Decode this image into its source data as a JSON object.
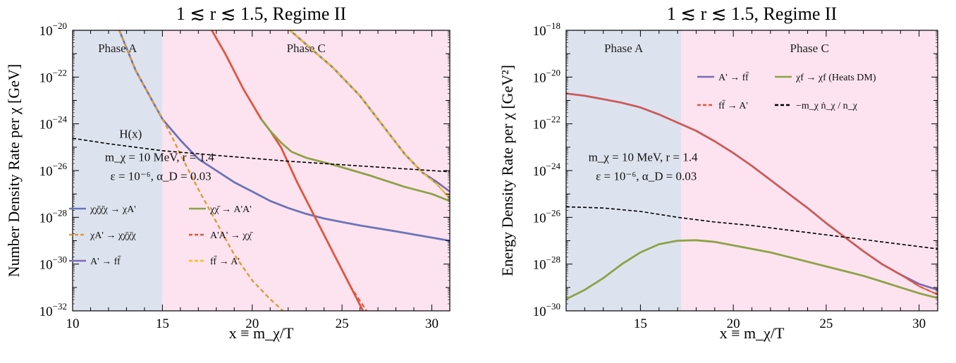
{
  "colors": {
    "phaseA": "#dde3ee",
    "phaseC": "#fce3ef",
    "blue": "#6b74b7",
    "green": "#8da246",
    "orange": "#e09a35",
    "red": "#e2553b",
    "purple": "#7e6bb4",
    "yellow": "#f5be22",
    "black": "#000000"
  },
  "chart_data": [
    {
      "type": "line",
      "title": "1 ≲ r ≲ 1.5, Regime II",
      "xlabel": "x ≡ m_χ/T",
      "ylabel": "Number Density Rate per χ [GeV]",
      "xlim": [
        10,
        31
      ],
      "ylim_exp": [
        -32,
        -20
      ],
      "log_y": true,
      "x_ticks": [
        10,
        15,
        20,
        25,
        30
      ],
      "y_tick_exps": [
        -20,
        -22,
        -24,
        -26,
        -28,
        -30,
        -32
      ],
      "regions": [
        {
          "label": "Phase A",
          "x": [
            10,
            15
          ],
          "color": "phaseA"
        },
        {
          "label": "Phase C",
          "x": [
            15,
            31
          ],
          "color": "phaseC"
        }
      ],
      "annotations": [
        {
          "text": "H(x)",
          "x": 12.6,
          "y_exp": -24.6
        },
        {
          "text": "m_χ = 10 MeV, r = 1.4",
          "x": 11.8,
          "y_exp": -25.6
        },
        {
          "text": "ε = 10⁻⁶, α_D = 0.03",
          "x": 12.1,
          "y_exp": -26.4
        }
      ],
      "legend": {
        "placement": "lower-left",
        "entries": [
          {
            "label": "χχ̄χ̄χ → χA'",
            "color": "blue",
            "dash": false
          },
          {
            "label": "χχ̄ → A'A'",
            "color": "green",
            "dash": false
          },
          {
            "label": "χA' → χχ̄χ̄χ",
            "color": "orange",
            "dash": true
          },
          {
            "label": "A'A' → χχ̄",
            "color": "red",
            "dash": true
          },
          {
            "label": "A' → ff̄",
            "color": "purple",
            "dash": false
          },
          {
            "label": "ff̄ → A'",
            "color": "yellow",
            "dash": true
          }
        ]
      },
      "series": [
        {
          "color": "blue",
          "dash": "",
          "width": 2.8,
          "points": [
            [
              12.6,
              -20
            ],
            [
              13.5,
              -21.7
            ],
            [
              14.5,
              -23.1
            ],
            [
              15.0,
              -23.8
            ],
            [
              16.0,
              -24.7
            ],
            [
              17.0,
              -25.5
            ],
            [
              18.0,
              -26.0
            ],
            [
              19.0,
              -26.5
            ],
            [
              20.0,
              -26.9
            ],
            [
              21.0,
              -27.3
            ],
            [
              22.0,
              -27.6
            ],
            [
              23.0,
              -27.85
            ],
            [
              24.0,
              -28.05
            ],
            [
              25.0,
              -28.2
            ],
            [
              26.0,
              -28.35
            ],
            [
              28.0,
              -28.6
            ],
            [
              31.0,
              -29.0
            ]
          ]
        },
        {
          "color": "orange",
          "dash": "6,4",
          "width": 2.4,
          "points": [
            [
              12.6,
              -20
            ],
            [
              13.5,
              -21.7
            ],
            [
              14.5,
              -23.1
            ],
            [
              15.0,
              -23.8
            ],
            [
              15.5,
              -24.5
            ],
            [
              16.0,
              -25.3
            ],
            [
              17.0,
              -26.8
            ],
            [
              18.0,
              -28.2
            ],
            [
              19.0,
              -29.6
            ],
            [
              20.0,
              -30.7
            ],
            [
              21.0,
              -31.5
            ],
            [
              22.0,
              -32.2
            ]
          ]
        },
        {
          "color": "red",
          "dash": "",
          "width": 2.8,
          "points": [
            [
              17.75,
              -20
            ],
            [
              18.5,
              -21.0
            ],
            [
              19.5,
              -22.5
            ],
            [
              20.5,
              -23.8
            ],
            [
              21.0,
              -24.3
            ],
            [
              21.6,
              -25.0
            ],
            [
              22.5,
              -26.5
            ],
            [
              23.5,
              -28.0
            ],
            [
              24.5,
              -29.5
            ],
            [
              25.5,
              -31.0
            ],
            [
              26.5,
              -32.5
            ]
          ]
        },
        {
          "color": "green",
          "dash": "",
          "width": 2.8,
          "points": [
            [
              20.5,
              -23.8
            ],
            [
              21.0,
              -24.3
            ],
            [
              21.6,
              -24.8
            ],
            [
              22.2,
              -25.2
            ],
            [
              23.0,
              -25.45
            ],
            [
              24.5,
              -25.75
            ],
            [
              26.5,
              -26.2
            ],
            [
              28.5,
              -26.7
            ],
            [
              30.0,
              -27.0
            ],
            [
              31.0,
              -27.3
            ]
          ]
        },
        {
          "color": "red",
          "dash": "6,4",
          "width": 2.4,
          "points": [
            [
              21.6,
              -25.0
            ],
            [
              22.5,
              -26.5
            ],
            [
              23.5,
              -28.0
            ],
            [
              24.5,
              -29.5
            ],
            [
              25.5,
              -31.0
            ],
            [
              26.8,
              -32.5
            ]
          ]
        },
        {
          "color": "purple",
          "dash": "",
          "width": 2.8,
          "points": [
            [
              22.1,
              -20
            ],
            [
              23.0,
              -20.6
            ],
            [
              24.5,
              -21.6
            ],
            [
              26.0,
              -22.8
            ],
            [
              27.5,
              -24.3
            ],
            [
              28.5,
              -25.3
            ],
            [
              29.5,
              -26.1
            ],
            [
              30.3,
              -26.5
            ],
            [
              31.0,
              -26.9
            ]
          ]
        },
        {
          "color": "green",
          "dash": "",
          "width": 1.4,
          "points": [
            [
              22.1,
              -20
            ],
            [
              23.0,
              -20.6
            ],
            [
              24.5,
              -21.6
            ],
            [
              26.0,
              -22.8
            ],
            [
              27.5,
              -24.3
            ],
            [
              28.5,
              -25.3
            ],
            [
              29.5,
              -26.1
            ],
            [
              30.3,
              -26.6
            ],
            [
              31.0,
              -27.2
            ]
          ]
        },
        {
          "color": "yellow",
          "dash": "6,4",
          "width": 2.4,
          "points": [
            [
              22.1,
              -20
            ],
            [
              23.0,
              -20.6
            ],
            [
              24.5,
              -21.6
            ],
            [
              26.0,
              -22.8
            ],
            [
              27.5,
              -24.3
            ],
            [
              28.5,
              -25.3
            ],
            [
              29.5,
              -26.1
            ],
            [
              30.3,
              -26.6
            ],
            [
              31.0,
              -27.2
            ]
          ]
        },
        {
          "color": "black",
          "dash": "5,3",
          "width": 1.6,
          "points": [
            [
              10.0,
              -24.62
            ],
            [
              12.0,
              -24.85
            ],
            [
              15.0,
              -25.15
            ],
            [
              18.0,
              -25.35
            ],
            [
              22.0,
              -25.6
            ],
            [
              26.0,
              -25.8
            ],
            [
              31.0,
              -26.05
            ]
          ]
        }
      ]
    },
    {
      "type": "line",
      "title": "1 ≲ r ≲ 1.5, Regime II",
      "xlabel": "x ≡ m_χ/T",
      "ylabel": "Energy Density Rate per χ [GeV²]",
      "xlim": [
        11,
        31
      ],
      "ylim_exp": [
        -30,
        -18
      ],
      "log_y": true,
      "x_ticks": [
        15,
        20,
        25,
        30
      ],
      "y_tick_exps": [
        -18,
        -20,
        -22,
        -24,
        -26,
        -28,
        -30
      ],
      "regions": [
        {
          "label": "Phase A",
          "x": [
            11,
            17.2
          ],
          "color": "phaseA"
        },
        {
          "label": "Phase C",
          "x": [
            17.2,
            31
          ],
          "color": "phaseC"
        }
      ],
      "annotations": [
        {
          "text": "m_χ = 10 MeV, r = 1.4",
          "x": 12.2,
          "y_exp": -23.6
        },
        {
          "text": "ε = 10⁻⁶, α_D = 0.03",
          "x": 12.6,
          "y_exp": -24.4
        }
      ],
      "legend": {
        "placement": "upper-right",
        "entries": [
          {
            "label": "A' → ff̄",
            "color": "purple",
            "dash": false
          },
          {
            "label": "χf → χf (Heats DM)",
            "color": "green",
            "dash": false
          },
          {
            "label": "ff̄ → A'",
            "color": "red",
            "dash": true
          },
          {
            "label": "−m_χ ṅ_χ / n_χ",
            "color": "black",
            "dash": true
          }
        ]
      },
      "series": [
        {
          "color": "purple",
          "dash": "",
          "width": 2.8,
          "points": [
            [
              11.0,
              -20.7
            ],
            [
              12.0,
              -20.8
            ],
            [
              13.0,
              -20.95
            ],
            [
              14.0,
              -21.1
            ],
            [
              15.0,
              -21.3
            ],
            [
              16.0,
              -21.6
            ],
            [
              17.0,
              -21.95
            ],
            [
              18.0,
              -22.3
            ],
            [
              19.0,
              -22.75
            ],
            [
              20.0,
              -23.25
            ],
            [
              21.0,
              -23.8
            ],
            [
              22.0,
              -24.4
            ],
            [
              23.0,
              -25.0
            ],
            [
              24.0,
              -25.6
            ],
            [
              25.0,
              -26.25
            ],
            [
              26.0,
              -26.85
            ],
            [
              27.0,
              -27.45
            ],
            [
              28.0,
              -28.0
            ],
            [
              29.0,
              -28.45
            ],
            [
              30.0,
              -28.85
            ],
            [
              31.0,
              -29.1
            ]
          ]
        },
        {
          "color": "red",
          "dash": "",
          "width": 1.8,
          "points": [
            [
              11.0,
              -20.7
            ],
            [
              12.0,
              -20.8
            ],
            [
              13.0,
              -20.95
            ],
            [
              14.0,
              -21.1
            ],
            [
              15.0,
              -21.3
            ],
            [
              16.0,
              -21.6
            ],
            [
              17.0,
              -21.95
            ],
            [
              18.0,
              -22.3
            ],
            [
              19.0,
              -22.75
            ],
            [
              20.0,
              -23.25
            ],
            [
              21.0,
              -23.8
            ],
            [
              22.0,
              -24.4
            ],
            [
              23.0,
              -25.0
            ],
            [
              24.0,
              -25.6
            ],
            [
              25.0,
              -26.25
            ],
            [
              26.0,
              -26.85
            ],
            [
              27.0,
              -27.45
            ],
            [
              28.0,
              -28.0
            ],
            [
              29.0,
              -28.45
            ],
            [
              30.0,
              -28.95
            ],
            [
              31.0,
              -29.3
            ]
          ]
        },
        {
          "color": "red",
          "dash": "6,4",
          "width": 2.2,
          "points": [
            [
              11.0,
              -20.7
            ],
            [
              12.0,
              -20.8
            ],
            [
              13.0,
              -20.95
            ],
            [
              14.0,
              -21.1
            ],
            [
              15.0,
              -21.3
            ],
            [
              16.0,
              -21.6
            ],
            [
              17.0,
              -21.95
            ],
            [
              18.0,
              -22.3
            ],
            [
              19.0,
              -22.75
            ],
            [
              20.0,
              -23.25
            ],
            [
              21.0,
              -23.8
            ],
            [
              22.0,
              -24.4
            ],
            [
              23.0,
              -25.0
            ],
            [
              24.0,
              -25.6
            ],
            [
              25.0,
              -26.25
            ],
            [
              26.0,
              -26.85
            ],
            [
              27.0,
              -27.45
            ],
            [
              28.0,
              -28.0
            ],
            [
              29.0,
              -28.45
            ],
            [
              30.0,
              -28.95
            ],
            [
              31.0,
              -29.3
            ]
          ]
        },
        {
          "color": "green",
          "dash": "",
          "width": 2.8,
          "points": [
            [
              11.0,
              -29.5
            ],
            [
              12.0,
              -29.1
            ],
            [
              13.0,
              -28.6
            ],
            [
              14.0,
              -28.0
            ],
            [
              15.0,
              -27.5
            ],
            [
              16.0,
              -27.15
            ],
            [
              17.0,
              -27.0
            ],
            [
              18.0,
              -26.98
            ],
            [
              19.0,
              -27.05
            ],
            [
              20.0,
              -27.2
            ],
            [
              21.0,
              -27.35
            ],
            [
              22.0,
              -27.5
            ],
            [
              23.0,
              -27.7
            ],
            [
              24.0,
              -27.9
            ],
            [
              25.0,
              -28.1
            ],
            [
              26.0,
              -28.3
            ],
            [
              27.0,
              -28.5
            ],
            [
              28.0,
              -28.75
            ],
            [
              29.0,
              -29.0
            ],
            [
              30.0,
              -29.25
            ],
            [
              31.0,
              -29.45
            ]
          ]
        },
        {
          "color": "black",
          "dash": "5,3",
          "width": 1.6,
          "points": [
            [
              11.0,
              -25.55
            ],
            [
              13.0,
              -25.6
            ],
            [
              15.0,
              -25.75
            ],
            [
              17.0,
              -26.0
            ],
            [
              19.0,
              -26.2
            ],
            [
              21.0,
              -26.35
            ],
            [
              23.0,
              -26.55
            ],
            [
              25.0,
              -26.75
            ],
            [
              27.0,
              -26.95
            ],
            [
              29.0,
              -27.15
            ],
            [
              31.0,
              -27.35
            ]
          ]
        }
      ]
    }
  ]
}
